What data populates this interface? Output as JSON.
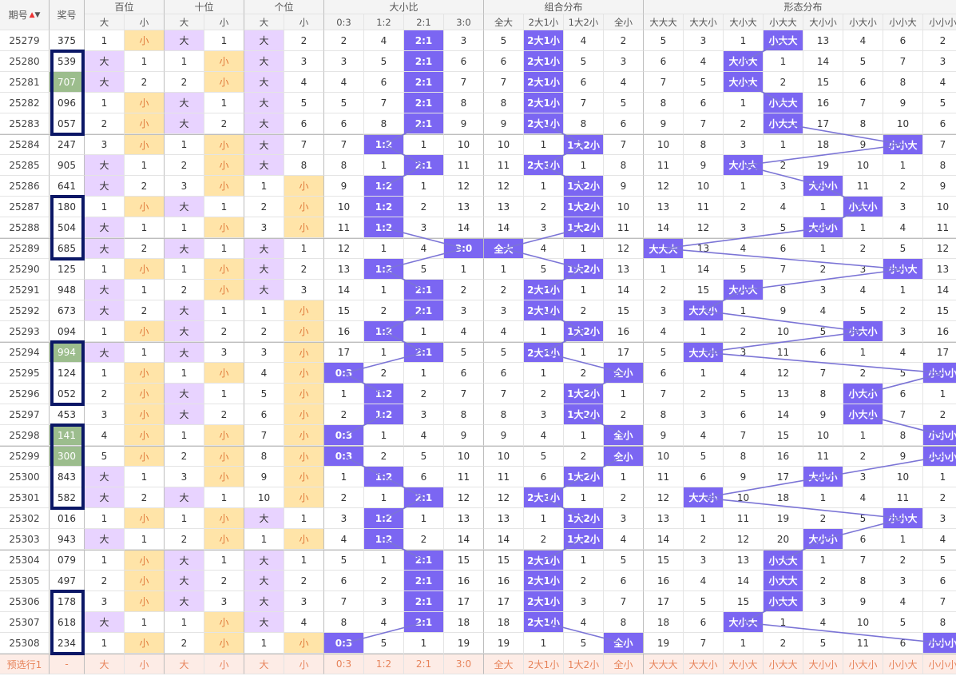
{
  "header": {
    "issue_label": "期号",
    "sort_up": "▲",
    "sort_down": "▼",
    "award_label": "奖号",
    "groups": [
      "百位",
      "十位",
      "个位",
      "大小比",
      "组合分布",
      "形态分布"
    ],
    "sub_pos": [
      "大",
      "小"
    ],
    "sub_ratio": [
      "0:3",
      "1:2",
      "2:1",
      "3:0"
    ],
    "sub_combo": [
      "全大",
      "2大1小",
      "1大2小",
      "全小"
    ],
    "sub_shape": [
      "大大大",
      "大大小",
      "大小大",
      "小大大",
      "大小小",
      "小大小",
      "小小大",
      "小小小"
    ]
  },
  "colors": {
    "big": "#e8d3ff",
    "small": "#ffe4a8",
    "hit": "#7b66f2",
    "repeat": "#9cbd8d",
    "box": "#0b1766",
    "line": "#7b74d6"
  },
  "rows": [
    {
      "issue": "25279",
      "num": "375",
      "h": [
        "1",
        "小"
      ],
      "t": [
        "大",
        "1"
      ],
      "u": [
        "大",
        "2"
      ],
      "r": [
        "2",
        "4",
        "2:1",
        "3"
      ],
      "c": [
        "5",
        "2大1小",
        "4",
        "2"
      ],
      "s": [
        "5",
        "3",
        "1",
        "小大大",
        "13",
        "4",
        "6",
        "2"
      ]
    },
    {
      "issue": "25280",
      "num": "539",
      "h": [
        "大",
        "1"
      ],
      "t": [
        "1",
        "小"
      ],
      "u": [
        "大",
        "3"
      ],
      "r": [
        "3",
        "5",
        "2:1",
        "6"
      ],
      "c": [
        "6",
        "2大1小",
        "5",
        "3"
      ],
      "s": [
        "6",
        "4",
        "大小大",
        "1",
        "14",
        "5",
        "7",
        "3"
      ]
    },
    {
      "issue": "25281",
      "num": "707",
      "h": [
        "大",
        "2"
      ],
      "t": [
        "2",
        "小"
      ],
      "u": [
        "大",
        "4"
      ],
      "r": [
        "4",
        "6",
        "2:1",
        "7"
      ],
      "c": [
        "7",
        "2大1小",
        "6",
        "4"
      ],
      "s": [
        "7",
        "5",
        "大小大",
        "2",
        "15",
        "6",
        "8",
        "4"
      ]
    },
    {
      "issue": "25282",
      "num": "096",
      "h": [
        "1",
        "小"
      ],
      "t": [
        "大",
        "1"
      ],
      "u": [
        "大",
        "5"
      ],
      "r": [
        "5",
        "7",
        "2:1",
        "8"
      ],
      "c": [
        "8",
        "2大1小",
        "7",
        "5"
      ],
      "s": [
        "8",
        "6",
        "1",
        "小大大",
        "16",
        "7",
        "9",
        "5"
      ]
    },
    {
      "issue": "25283",
      "num": "057",
      "h": [
        "2",
        "小"
      ],
      "t": [
        "大",
        "2"
      ],
      "u": [
        "大",
        "6"
      ],
      "r": [
        "6",
        "8",
        "2:1",
        "9"
      ],
      "c": [
        "9",
        "2大1小",
        "8",
        "6"
      ],
      "s": [
        "9",
        "7",
        "2",
        "小大大",
        "17",
        "8",
        "10",
        "6"
      ]
    },
    {
      "issue": "25284",
      "num": "247",
      "h": [
        "3",
        "小"
      ],
      "t": [
        "1",
        "小"
      ],
      "u": [
        "大",
        "7"
      ],
      "r": [
        "7",
        "1:2",
        "1",
        "10"
      ],
      "c": [
        "10",
        "1",
        "1大2小",
        "7"
      ],
      "s": [
        "10",
        "8",
        "3",
        "1",
        "18",
        "9",
        "小小大",
        "7"
      ]
    },
    {
      "issue": "25285",
      "num": "905",
      "h": [
        "大",
        "1"
      ],
      "t": [
        "2",
        "小"
      ],
      "u": [
        "大",
        "8"
      ],
      "r": [
        "8",
        "1",
        "2:1",
        "11"
      ],
      "c": [
        "11",
        "2大1小",
        "1",
        "8"
      ],
      "s": [
        "11",
        "9",
        "大小大",
        "2",
        "19",
        "10",
        "1",
        "8"
      ]
    },
    {
      "issue": "25286",
      "num": "641",
      "h": [
        "大",
        "2"
      ],
      "t": [
        "3",
        "小"
      ],
      "u": [
        "1",
        "小"
      ],
      "r": [
        "9",
        "1:2",
        "1",
        "12"
      ],
      "c": [
        "12",
        "1",
        "1大2小",
        "9"
      ],
      "s": [
        "12",
        "10",
        "1",
        "3",
        "大小小",
        "11",
        "2",
        "9"
      ]
    },
    {
      "issue": "25287",
      "num": "180",
      "h": [
        "1",
        "小"
      ],
      "t": [
        "大",
        "1"
      ],
      "u": [
        "2",
        "小"
      ],
      "r": [
        "10",
        "1:2",
        "2",
        "13"
      ],
      "c": [
        "13",
        "2",
        "1大2小",
        "10"
      ],
      "s": [
        "13",
        "11",
        "2",
        "4",
        "1",
        "小大小",
        "3",
        "10"
      ]
    },
    {
      "issue": "25288",
      "num": "504",
      "h": [
        "大",
        "1"
      ],
      "t": [
        "1",
        "小"
      ],
      "u": [
        "3",
        "小"
      ],
      "r": [
        "11",
        "1:2",
        "3",
        "14"
      ],
      "c": [
        "14",
        "3",
        "1大2小",
        "11"
      ],
      "s": [
        "14",
        "12",
        "3",
        "5",
        "大小小",
        "1",
        "4",
        "11"
      ]
    },
    {
      "issue": "25289",
      "num": "685",
      "h": [
        "大",
        "2"
      ],
      "t": [
        "大",
        "1"
      ],
      "u": [
        "大",
        "1"
      ],
      "r": [
        "12",
        "1",
        "4",
        "3:0"
      ],
      "c": [
        "全大",
        "4",
        "1",
        "12"
      ],
      "s": [
        "大大大",
        "13",
        "4",
        "6",
        "1",
        "2",
        "5",
        "12"
      ]
    },
    {
      "issue": "25290",
      "num": "125",
      "h": [
        "1",
        "小"
      ],
      "t": [
        "1",
        "小"
      ],
      "u": [
        "大",
        "2"
      ],
      "r": [
        "13",
        "1:2",
        "5",
        "1"
      ],
      "c": [
        "1",
        "5",
        "1大2小",
        "13"
      ],
      "s": [
        "1",
        "14",
        "5",
        "7",
        "2",
        "3",
        "小小大",
        "13"
      ]
    },
    {
      "issue": "25291",
      "num": "948",
      "h": [
        "大",
        "1"
      ],
      "t": [
        "2",
        "小"
      ],
      "u": [
        "大",
        "3"
      ],
      "r": [
        "14",
        "1",
        "2:1",
        "2"
      ],
      "c": [
        "2",
        "2大1小",
        "1",
        "14"
      ],
      "s": [
        "2",
        "15",
        "大小大",
        "8",
        "3",
        "4",
        "1",
        "14"
      ]
    },
    {
      "issue": "25292",
      "num": "673",
      "h": [
        "大",
        "2"
      ],
      "t": [
        "大",
        "1"
      ],
      "u": [
        "1",
        "小"
      ],
      "r": [
        "15",
        "2",
        "2:1",
        "3"
      ],
      "c": [
        "3",
        "2大1小",
        "2",
        "15"
      ],
      "s": [
        "3",
        "大大小",
        "1",
        "9",
        "4",
        "5",
        "2",
        "15"
      ]
    },
    {
      "issue": "25293",
      "num": "094",
      "h": [
        "1",
        "小"
      ],
      "t": [
        "大",
        "2"
      ],
      "u": [
        "2",
        "小"
      ],
      "r": [
        "16",
        "1:2",
        "1",
        "4"
      ],
      "c": [
        "4",
        "1",
        "1大2小",
        "16"
      ],
      "s": [
        "4",
        "1",
        "2",
        "10",
        "5",
        "小大小",
        "3",
        "16"
      ]
    },
    {
      "issue": "25294",
      "num": "994",
      "h": [
        "大",
        "1"
      ],
      "t": [
        "大",
        "3"
      ],
      "u": [
        "3",
        "小"
      ],
      "r": [
        "17",
        "1",
        "2:1",
        "5"
      ],
      "c": [
        "5",
        "2大1小",
        "1",
        "17"
      ],
      "s": [
        "5",
        "大大小",
        "3",
        "11",
        "6",
        "1",
        "4",
        "17"
      ]
    },
    {
      "issue": "25295",
      "num": "124",
      "h": [
        "1",
        "小"
      ],
      "t": [
        "1",
        "小"
      ],
      "u": [
        "4",
        "小"
      ],
      "r": [
        "0:3",
        "2",
        "1",
        "6"
      ],
      "c": [
        "6",
        "1",
        "2",
        "全小"
      ],
      "s": [
        "6",
        "1",
        "4",
        "12",
        "7",
        "2",
        "5",
        "小小小"
      ]
    },
    {
      "issue": "25296",
      "num": "052",
      "h": [
        "2",
        "小"
      ],
      "t": [
        "大",
        "1"
      ],
      "u": [
        "5",
        "小"
      ],
      "r": [
        "1",
        "1:2",
        "2",
        "7"
      ],
      "c": [
        "7",
        "2",
        "1大2小",
        "1"
      ],
      "s": [
        "7",
        "2",
        "5",
        "13",
        "8",
        "小大小",
        "6",
        "1"
      ]
    },
    {
      "issue": "25297",
      "num": "453",
      "h": [
        "3",
        "小"
      ],
      "t": [
        "大",
        "2"
      ],
      "u": [
        "6",
        "小"
      ],
      "r": [
        "2",
        "1:2",
        "3",
        "8"
      ],
      "c": [
        "8",
        "3",
        "1大2小",
        "2"
      ],
      "s": [
        "8",
        "3",
        "6",
        "14",
        "9",
        "小大小",
        "7",
        "2"
      ]
    },
    {
      "issue": "25298",
      "num": "141",
      "h": [
        "4",
        "小"
      ],
      "t": [
        "1",
        "小"
      ],
      "u": [
        "7",
        "小"
      ],
      "r": [
        "0:3",
        "1",
        "4",
        "9"
      ],
      "c": [
        "9",
        "4",
        "1",
        "全小"
      ],
      "s": [
        "9",
        "4",
        "7",
        "15",
        "10",
        "1",
        "8",
        "小小小"
      ]
    },
    {
      "issue": "25299",
      "num": "300",
      "h": [
        "5",
        "小"
      ],
      "t": [
        "2",
        "小"
      ],
      "u": [
        "8",
        "小"
      ],
      "r": [
        "0:3",
        "2",
        "5",
        "10"
      ],
      "c": [
        "10",
        "5",
        "2",
        "全小"
      ],
      "s": [
        "10",
        "5",
        "8",
        "16",
        "11",
        "2",
        "9",
        "小小小"
      ]
    },
    {
      "issue": "25300",
      "num": "843",
      "h": [
        "大",
        "1"
      ],
      "t": [
        "3",
        "小"
      ],
      "u": [
        "9",
        "小"
      ],
      "r": [
        "1",
        "1:2",
        "6",
        "11"
      ],
      "c": [
        "11",
        "6",
        "1大2小",
        "1"
      ],
      "s": [
        "11",
        "6",
        "9",
        "17",
        "大小小",
        "3",
        "10",
        "1"
      ]
    },
    {
      "issue": "25301",
      "num": "582",
      "h": [
        "大",
        "2"
      ],
      "t": [
        "大",
        "1"
      ],
      "u": [
        "10",
        "小"
      ],
      "r": [
        "2",
        "1",
        "2:1",
        "12"
      ],
      "c": [
        "12",
        "2大1小",
        "1",
        "2"
      ],
      "s": [
        "12",
        "大大小",
        "10",
        "18",
        "1",
        "4",
        "11",
        "2"
      ]
    },
    {
      "issue": "25302",
      "num": "016",
      "h": [
        "1",
        "小"
      ],
      "t": [
        "1",
        "小"
      ],
      "u": [
        "大",
        "1"
      ],
      "r": [
        "3",
        "1:2",
        "1",
        "13"
      ],
      "c": [
        "13",
        "1",
        "1大2小",
        "3"
      ],
      "s": [
        "13",
        "1",
        "11",
        "19",
        "2",
        "5",
        "小小大",
        "3"
      ]
    },
    {
      "issue": "25303",
      "num": "943",
      "h": [
        "大",
        "1"
      ],
      "t": [
        "2",
        "小"
      ],
      "u": [
        "1",
        "小"
      ],
      "r": [
        "4",
        "1:2",
        "2",
        "14"
      ],
      "c": [
        "14",
        "2",
        "1大2小",
        "4"
      ],
      "s": [
        "14",
        "2",
        "12",
        "20",
        "大小小",
        "6",
        "1",
        "4"
      ]
    },
    {
      "issue": "25304",
      "num": "079",
      "h": [
        "1",
        "小"
      ],
      "t": [
        "大",
        "1"
      ],
      "u": [
        "大",
        "1"
      ],
      "r": [
        "5",
        "1",
        "2:1",
        "15"
      ],
      "c": [
        "15",
        "2大1小",
        "1",
        "5"
      ],
      "s": [
        "15",
        "3",
        "13",
        "小大大",
        "1",
        "7",
        "2",
        "5"
      ]
    },
    {
      "issue": "25305",
      "num": "497",
      "h": [
        "2",
        "小"
      ],
      "t": [
        "大",
        "2"
      ],
      "u": [
        "大",
        "2"
      ],
      "r": [
        "6",
        "2",
        "2:1",
        "16"
      ],
      "c": [
        "16",
        "2大1小",
        "2",
        "6"
      ],
      "s": [
        "16",
        "4",
        "14",
        "小大大",
        "2",
        "8",
        "3",
        "6"
      ]
    },
    {
      "issue": "25306",
      "num": "178",
      "h": [
        "3",
        "小"
      ],
      "t": [
        "大",
        "3"
      ],
      "u": [
        "大",
        "3"
      ],
      "r": [
        "7",
        "3",
        "2:1",
        "17"
      ],
      "c": [
        "17",
        "2大1小",
        "3",
        "7"
      ],
      "s": [
        "17",
        "5",
        "15",
        "小大大",
        "3",
        "9",
        "4",
        "7"
      ]
    },
    {
      "issue": "25307",
      "num": "618",
      "h": [
        "大",
        "1"
      ],
      "t": [
        "1",
        "小"
      ],
      "u": [
        "大",
        "4"
      ],
      "r": [
        "8",
        "4",
        "2:1",
        "18"
      ],
      "c": [
        "18",
        "2大1小",
        "4",
        "8"
      ],
      "s": [
        "18",
        "6",
        "大小大",
        "1",
        "4",
        "10",
        "5",
        "8"
      ]
    },
    {
      "issue": "25308",
      "num": "234",
      "h": [
        "1",
        "小"
      ],
      "t": [
        "2",
        "小"
      ],
      "u": [
        "1",
        "小"
      ],
      "r": [
        "0:3",
        "5",
        "1",
        "19"
      ],
      "c": [
        "19",
        "1",
        "5",
        "全小"
      ],
      "s": [
        "19",
        "7",
        "1",
        "2",
        "5",
        "11",
        "6",
        "小小小"
      ]
    }
  ],
  "footer": {
    "label": "预选行1",
    "num": "-"
  },
  "repeat_cells": [
    "25281",
    "25294",
    "25298",
    "25299"
  ],
  "boxes": [
    [
      "25280",
      "25283"
    ],
    [
      "25287",
      "25289"
    ],
    [
      "25294",
      "25296"
    ],
    [
      "25298",
      "25301"
    ],
    [
      "25306",
      "25308"
    ]
  ]
}
